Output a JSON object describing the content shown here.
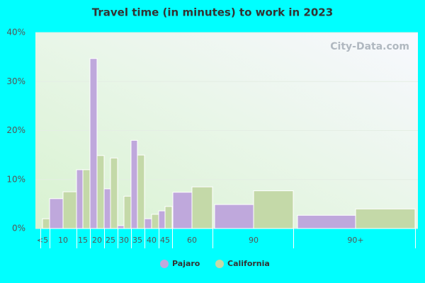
{
  "chart_data": {
    "type": "bar",
    "title": "Travel time (in minutes) to work in 2023",
    "categories": [
      "<5",
      "10",
      "15",
      "20",
      "25",
      "30",
      "35",
      "40",
      "45",
      "60",
      "90",
      "90+"
    ],
    "series": [
      {
        "name": "Pajaro",
        "color": "#bfa8dc",
        "values": [
          0,
          6.1,
          12.0,
          34.7,
          8.1,
          0.6,
          18.0,
          2.0,
          3.6,
          7.4,
          4.9,
          2.7
        ]
      },
      {
        "name": "California",
        "color": "#c4d9a8",
        "values": [
          2.0,
          7.5,
          12.0,
          14.9,
          14.4,
          6.6,
          15.0,
          2.9,
          4.5,
          8.5,
          7.7,
          4.0
        ]
      }
    ],
    "ylim": [
      0,
      40
    ],
    "yticks": [
      {
        "value": 0,
        "label": "0%"
      },
      {
        "value": 10,
        "label": "10%"
      },
      {
        "value": 20,
        "label": "20%"
      },
      {
        "value": 30,
        "label": "30%"
      },
      {
        "value": 40,
        "label": "40%"
      }
    ],
    "grid": true,
    "watermark": "City-Data.com"
  }
}
